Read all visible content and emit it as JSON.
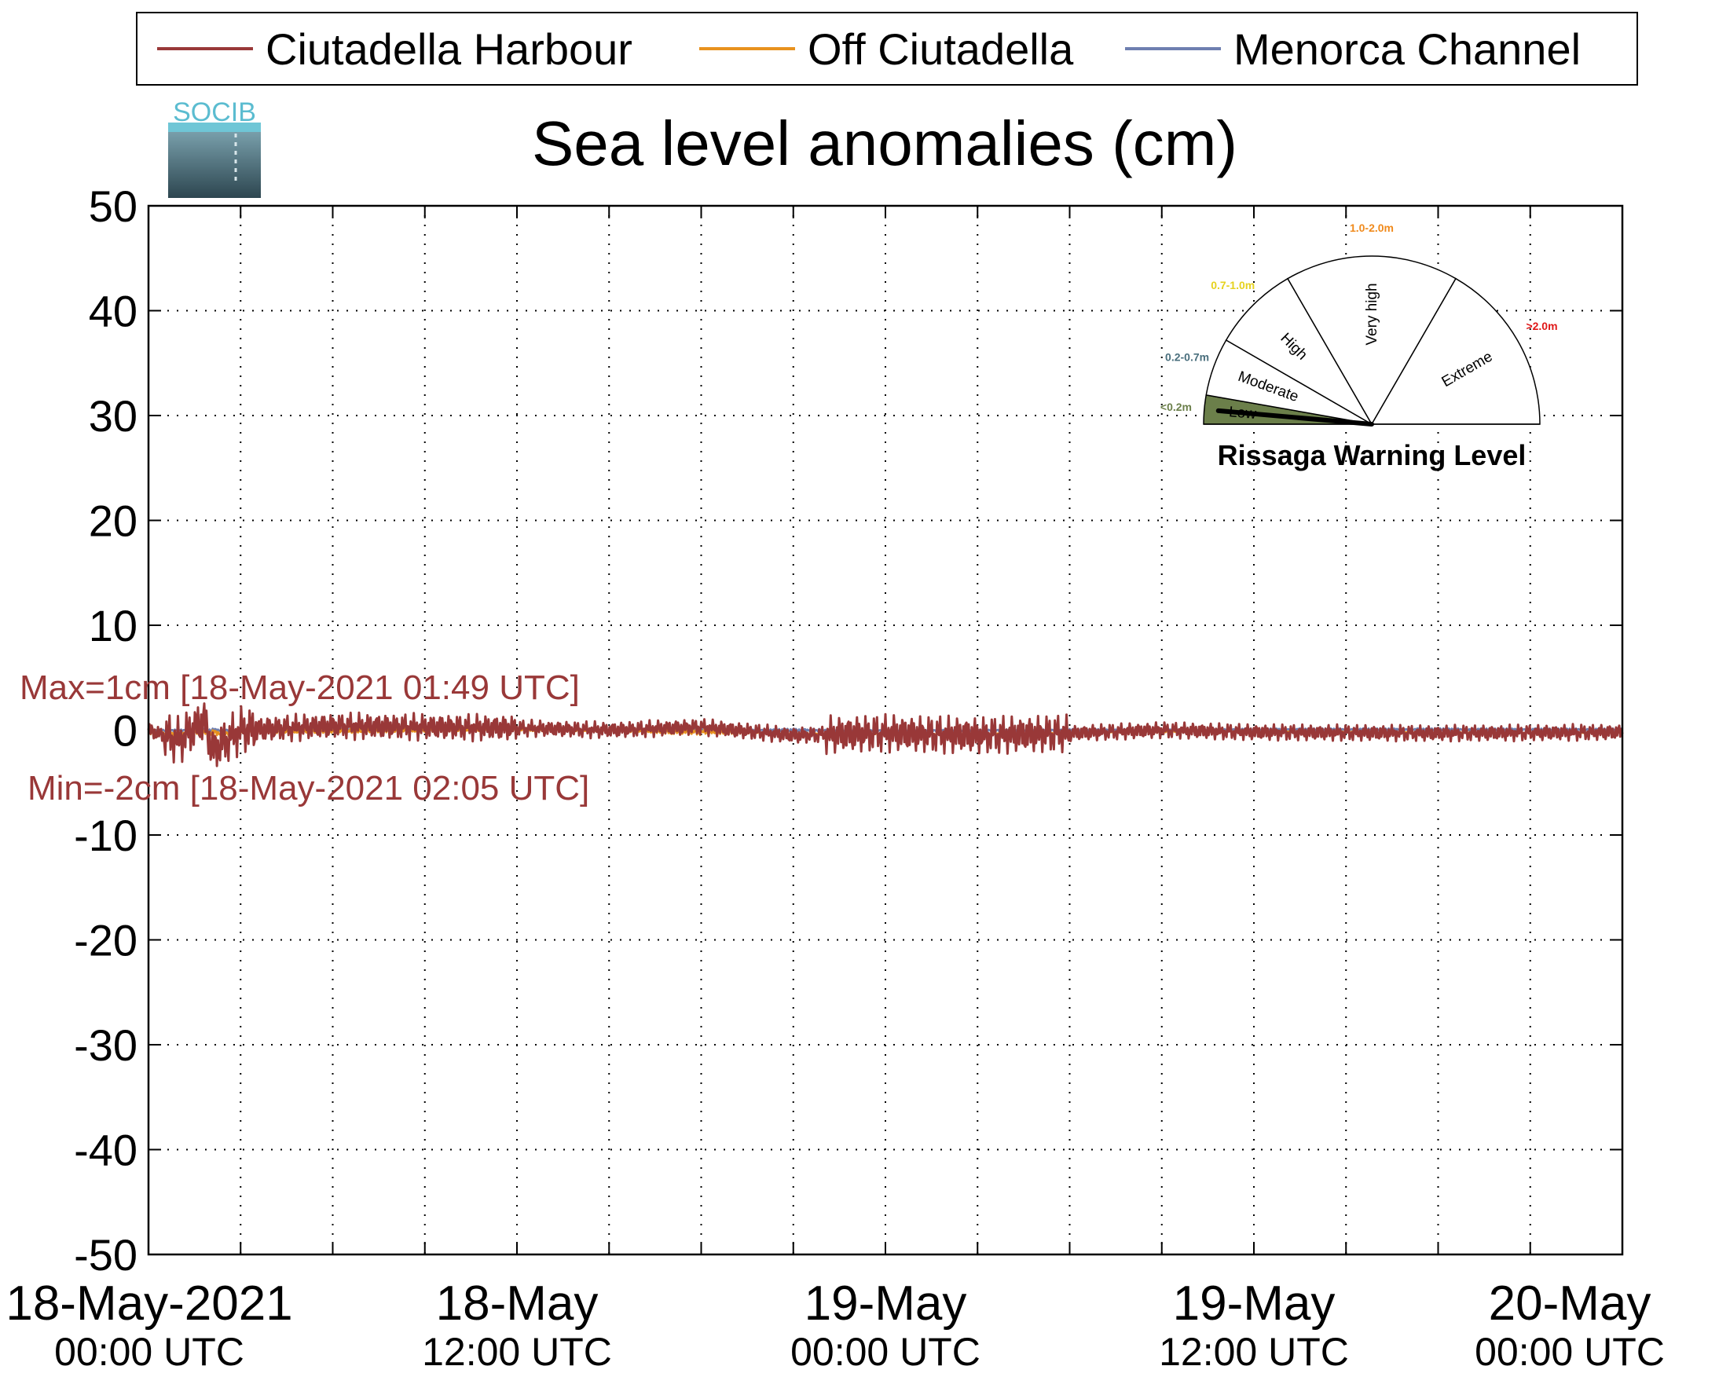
{
  "chart_data": {
    "type": "line",
    "title": "Sea level anomalies (cm)",
    "xlabel": "",
    "ylabel": "",
    "ylim": [
      -50,
      50
    ],
    "yticks": [
      50,
      40,
      30,
      20,
      10,
      0,
      -10,
      -20,
      -30,
      -40,
      -50
    ],
    "xlim": [
      "2021-05-18T00:00Z",
      "2021-05-20T00:00Z"
    ],
    "xticks": [
      {
        "line1": "18-May-2021",
        "line2": "00:00 UTC"
      },
      {
        "line1": "18-May",
        "line2": "12:00 UTC"
      },
      {
        "line1": "19-May",
        "line2": "00:00 UTC"
      },
      {
        "line1": "19-May",
        "line2": "12:00 UTC"
      },
      {
        "line1": "20-May",
        "line2": "00:00 UTC"
      }
    ],
    "grid": true,
    "legend": "top",
    "series": [
      {
        "name": "Ciutadella Harbour",
        "color": "#993838",
        "x": [
          "2021-05-18T00:00Z",
          "2021-05-18T01:00Z",
          "2021-05-18T01:49Z",
          "2021-05-18T02:05Z",
          "2021-05-18T03:00Z",
          "2021-05-18T06:00Z",
          "2021-05-18T12:00Z",
          "2021-05-18T15:00Z",
          "2021-05-18T18:00Z",
          "2021-05-18T21:00Z",
          "2021-05-19T00:00Z",
          "2021-05-19T03:00Z",
          "2021-05-19T06:00Z",
          "2021-05-19T09:00Z",
          "2021-05-19T12:00Z",
          "2021-05-19T18:00Z",
          "2021-05-20T00:00Z"
        ],
        "values": [
          0,
          -1,
          1,
          -2,
          0,
          0.4,
          0.2,
          0,
          0.3,
          -0.5,
          -0.3,
          -0.5,
          -0.3,
          0,
          -0.2,
          -0.3,
          -0.2
        ]
      },
      {
        "name": "Off Ciutadella",
        "color": "#e8921e",
        "x": [
          "2021-05-18T00:00Z",
          "2021-05-18T12:00Z",
          "2021-05-19T00:00Z",
          "2021-05-19T12:00Z",
          "2021-05-20T00:00Z"
        ],
        "values": [
          -0.3,
          0,
          -0.4,
          -0.1,
          -0.3
        ]
      },
      {
        "name": "Menorca Channel",
        "color": "#6e7fb0",
        "x": [
          "2021-05-18T00:00Z",
          "2021-05-18T12:00Z",
          "2021-05-19T00:00Z",
          "2021-05-19T12:00Z",
          "2021-05-20T00:00Z"
        ],
        "values": [
          0,
          0.1,
          0,
          0.1,
          0.1
        ]
      }
    ],
    "annotations": {
      "max": "Max=1cm [18-May-2021 01:49 UTC]",
      "min": "Min=-2cm [18-May-2021 02:05 UTC]"
    }
  },
  "logo": {
    "text": "SOCIB"
  },
  "gauge": {
    "title": "Rissaga Warning Level",
    "current_level": "Low",
    "levels": [
      {
        "name": "Low",
        "range": "<0.2m",
        "color": "#6b7f4a"
      },
      {
        "name": "Moderate",
        "range": "0.2-0.7m",
        "color": "#4a6f7d"
      },
      {
        "name": "High",
        "range": "0.7-1.0m",
        "color": "#e6d21e"
      },
      {
        "name": "Very high",
        "range": "1.0-2.0m",
        "color": "#f08a1c"
      },
      {
        "name": "Extreme",
        "range": ">2.0m",
        "color": "#e01818"
      }
    ]
  }
}
